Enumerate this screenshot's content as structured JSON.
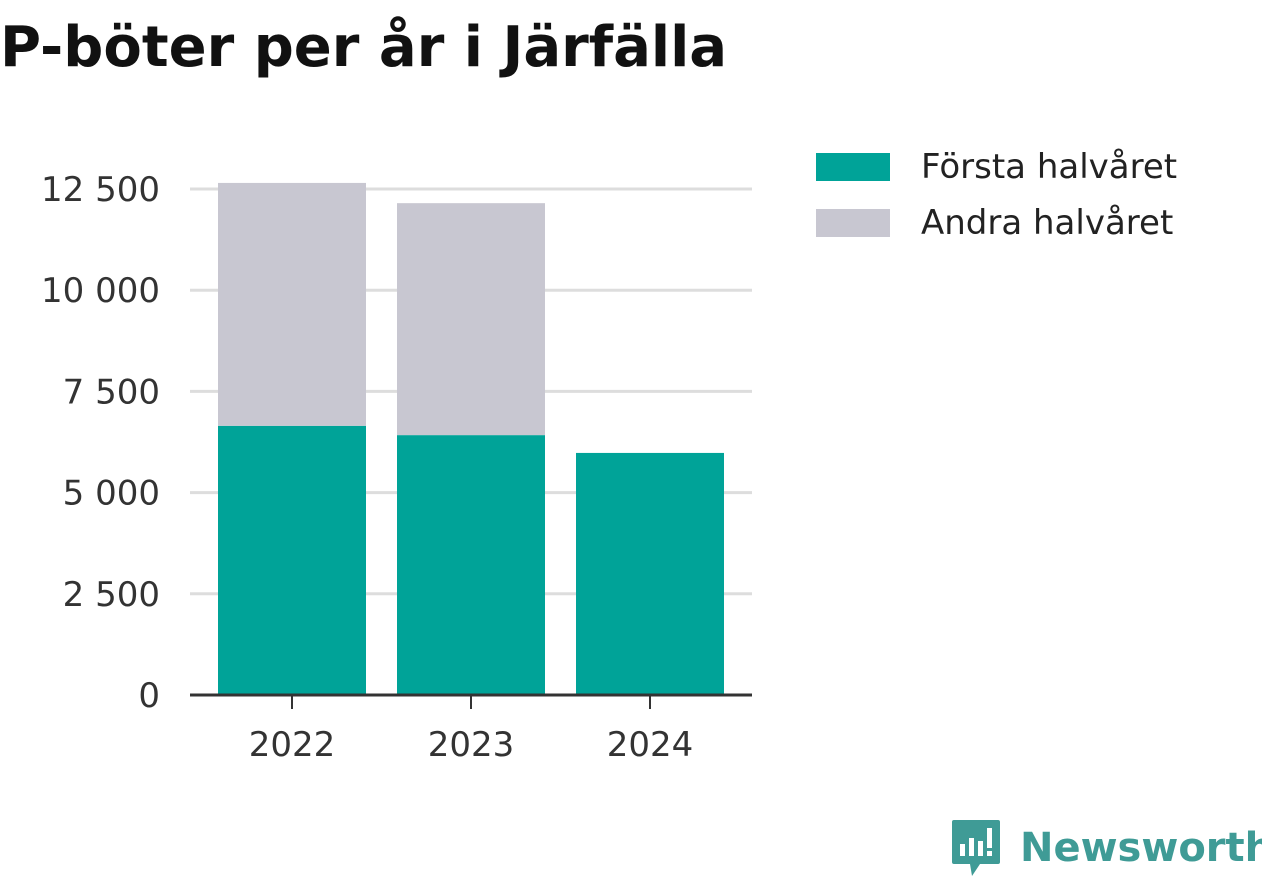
{
  "chart_data": {
    "type": "bar",
    "stacked": true,
    "title": "P-böter per år i Järfälla",
    "xlabel": "",
    "ylabel": "",
    "categories": [
      "2022",
      "2023",
      "2024"
    ],
    "series": [
      {
        "name": "Första halvåret",
        "color": "#00a398",
        "values": [
          6650,
          6420,
          5980
        ]
      },
      {
        "name": "Andra halvåret",
        "color": "#c8c7d1",
        "values": [
          6000,
          5730,
          0
        ]
      }
    ],
    "ylim": [
      0,
      12500
    ],
    "yticks": [
      0,
      2500,
      5000,
      7500,
      10000,
      12500
    ],
    "ytick_labels": [
      "0",
      "2 500",
      "5 000",
      "7 500",
      "10 000",
      "12 500"
    ],
    "grid": true,
    "legend_position": "right"
  },
  "brand": {
    "name": "Newsworthy",
    "color": "#3f9b96",
    "icon": "newsworthy-logo-icon"
  }
}
